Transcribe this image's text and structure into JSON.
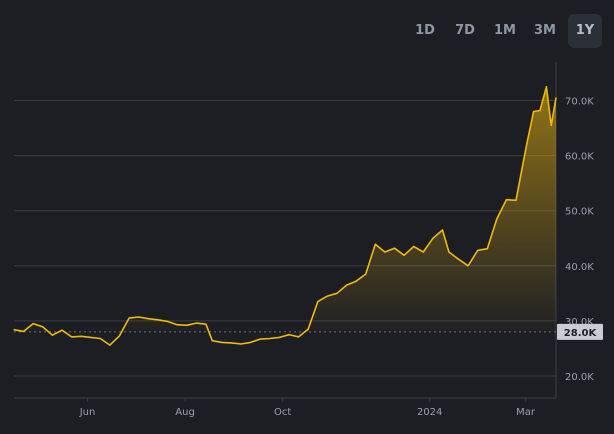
{
  "range_tabs": [
    {
      "label": "1D",
      "active": false
    },
    {
      "label": "7D",
      "active": false
    },
    {
      "label": "1M",
      "active": false
    },
    {
      "label": "3M",
      "active": false
    },
    {
      "label": "1Y",
      "active": true
    }
  ],
  "colors": {
    "background": "#1c1e24",
    "line": "#f0b90b",
    "grid": "#3a3d45",
    "axis_text": "#9aa1ad",
    "baseline": "#6b6f78",
    "current_badge_bg": "#c9ccd3",
    "current_badge_text": "#1c1e24",
    "tab_active_bg": "#2b2f38"
  },
  "chart_data": {
    "type": "area",
    "title": "",
    "xlabel": "",
    "ylabel": "",
    "ylim": [
      16000,
      77000
    ],
    "xlim": [
      "2023-04-16",
      "2024-03-20"
    ],
    "grid": true,
    "y_ticks": [
      20000,
      30000,
      40000,
      50000,
      60000,
      70000
    ],
    "y_tick_labels": [
      "20.0K",
      "30.0K",
      "40.0K",
      "50.0K",
      "60.0K",
      "70.0K"
    ],
    "x_ticks": [
      "2023-06-01",
      "2023-08-01",
      "2023-10-01",
      "2024-01-01",
      "2024-03-01"
    ],
    "x_tick_labels": [
      "Jun",
      "Aug",
      "Oct",
      "2024",
      "Mar"
    ],
    "baseline_value": 28000,
    "baseline_label": "28.0K",
    "x": [
      "2023-04-16",
      "2023-04-22",
      "2023-04-28",
      "2023-05-04",
      "2023-05-10",
      "2023-05-16",
      "2023-05-22",
      "2023-05-28",
      "2023-06-03",
      "2023-06-09",
      "2023-06-15",
      "2023-06-21",
      "2023-06-27",
      "2023-07-03",
      "2023-07-09",
      "2023-07-15",
      "2023-07-21",
      "2023-07-27",
      "2023-08-02",
      "2023-08-08",
      "2023-08-14",
      "2023-08-18",
      "2023-08-24",
      "2023-08-30",
      "2023-09-05",
      "2023-09-11",
      "2023-09-17",
      "2023-09-23",
      "2023-09-29",
      "2023-10-05",
      "2023-10-11",
      "2023-10-17",
      "2023-10-23",
      "2023-10-29",
      "2023-11-04",
      "2023-11-10",
      "2023-11-16",
      "2023-11-22",
      "2023-11-28",
      "2023-12-04",
      "2023-12-10",
      "2023-12-16",
      "2023-12-22",
      "2023-12-28",
      "2024-01-03",
      "2024-01-09",
      "2024-01-13",
      "2024-01-19",
      "2024-01-25",
      "2024-01-31",
      "2024-02-06",
      "2024-02-12",
      "2024-02-18",
      "2024-02-24",
      "2024-02-28",
      "2024-03-02",
      "2024-03-06",
      "2024-03-10",
      "2024-03-14",
      "2024-03-17",
      "2024-03-20"
    ],
    "series": [
      {
        "values": [
          28400,
          28100,
          29500,
          28900,
          27400,
          28300,
          27100,
          27200,
          27000,
          26800,
          25600,
          27300,
          30500,
          30700,
          30400,
          30200,
          29900,
          29300,
          29200,
          29600,
          29400,
          26400,
          26100,
          26000,
          25800,
          26100,
          26700,
          26800,
          27000,
          27500,
          27100,
          28500,
          33500,
          34500,
          35000,
          36500,
          37200,
          38500,
          43900,
          42500,
          43200,
          41900,
          43500,
          42500,
          45000,
          46500,
          42500,
          41200,
          40000,
          42800,
          43100,
          48500,
          52000,
          51900,
          58000,
          62500,
          68000,
          68200,
          72500,
          65500,
          70500
        ]
      }
    ]
  }
}
